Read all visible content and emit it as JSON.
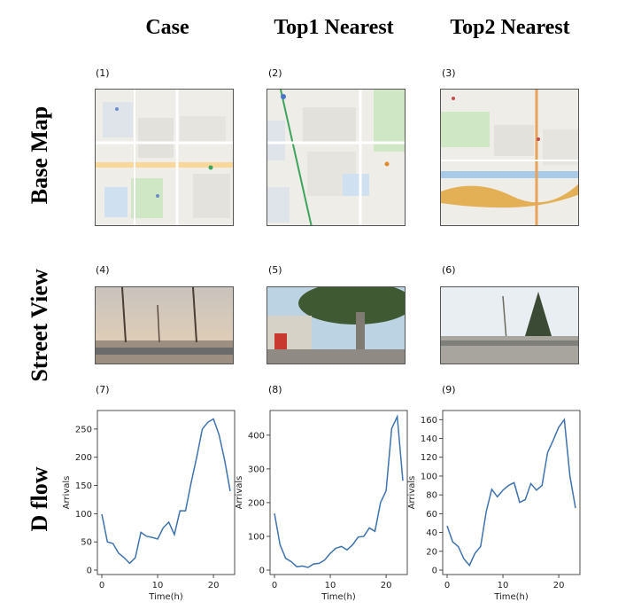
{
  "columns": [
    "Case",
    "Top1 Nearest",
    "Top2 Nearest"
  ],
  "rows": [
    "Base Map",
    "Street View",
    "D flow"
  ],
  "panels": [
    "(1)",
    "(2)",
    "(3)",
    "(4)",
    "(5)",
    "(6)",
    "(7)",
    "(8)",
    "(9)"
  ],
  "chart_data": [
    {
      "type": "line",
      "xlabel": "Time(h)",
      "ylabel": "Arrivals",
      "xlim": [
        0,
        23
      ],
      "ylim": [
        0,
        275
      ],
      "xticks": [
        0,
        10,
        20
      ],
      "yticks": [
        0,
        50,
        100,
        150,
        200,
        250
      ],
      "x": [
        0,
        1,
        2,
        3,
        4,
        5,
        6,
        7,
        8,
        9,
        10,
        11,
        12,
        13,
        14,
        15,
        16,
        17,
        18,
        19,
        20,
        21,
        22,
        23
      ],
      "series": [
        {
          "values": [
            99,
            50,
            47,
            30,
            22,
            12,
            22,
            67,
            60,
            58,
            55,
            75,
            85,
            63,
            105,
            105,
            155,
            200,
            250,
            262,
            268,
            240,
            195,
            140
          ]
        }
      ],
      "color": "#3d72ae"
    },
    {
      "type": "line",
      "xlabel": "Time(h)",
      "ylabel": "Arrivals",
      "xlim": [
        0,
        23
      ],
      "ylim": [
        0,
        460
      ],
      "xticks": [
        0,
        10,
        20
      ],
      "yticks": [
        0,
        100,
        200,
        300,
        400
      ],
      "x": [
        0,
        1,
        2,
        3,
        4,
        5,
        6,
        7,
        8,
        9,
        10,
        11,
        12,
        13,
        14,
        15,
        16,
        17,
        18,
        19,
        20,
        21,
        22,
        23
      ],
      "series": [
        {
          "values": [
            168,
            75,
            35,
            25,
            10,
            12,
            8,
            18,
            20,
            30,
            50,
            65,
            70,
            60,
            75,
            98,
            100,
            125,
            115,
            200,
            235,
            420,
            455,
            265
          ]
        }
      ],
      "color": "#3d72ae"
    },
    {
      "type": "line",
      "xlabel": "Time(h)",
      "ylabel": "Arrivals",
      "xlim": [
        0,
        23
      ],
      "ylim": [
        0,
        165
      ],
      "xticks": [
        0,
        10,
        20
      ],
      "yticks": [
        0,
        20,
        40,
        60,
        80,
        100,
        120,
        140,
        160
      ],
      "x": [
        0,
        1,
        2,
        3,
        4,
        5,
        6,
        7,
        8,
        9,
        10,
        11,
        12,
        13,
        14,
        15,
        16,
        17,
        18,
        19,
        20,
        21,
        22,
        23
      ],
      "series": [
        {
          "values": [
            47,
            30,
            25,
            12,
            5,
            18,
            25,
            62,
            86,
            78,
            85,
            90,
            93,
            72,
            75,
            92,
            85,
            90,
            125,
            138,
            152,
            160,
            100,
            66
          ]
        }
      ],
      "color": "#3d72ae"
    }
  ]
}
